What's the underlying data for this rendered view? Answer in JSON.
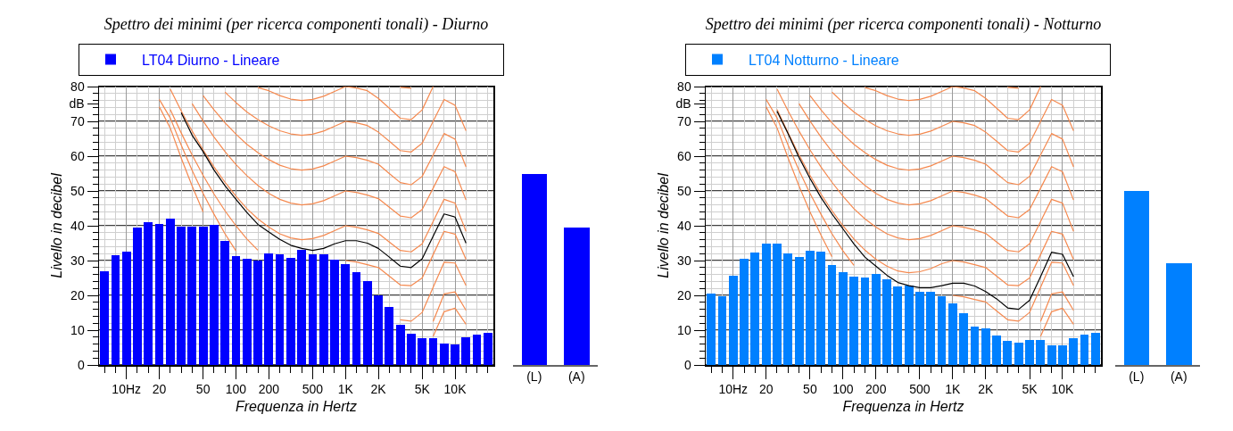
{
  "chart_data": [
    {
      "type": "bar",
      "title": "Spettro dei minimi (per ricerca componenti tonali) - Diurno",
      "xlabel": "Frequenza in Hertz",
      "ylabel": "Livello in decibel",
      "legend": "top",
      "grid": true,
      "line_style": "solid",
      "categories": [
        null,
        null,
        "10Hz",
        null,
        null,
        "20",
        null,
        null,
        null,
        "50",
        null,
        null,
        "100",
        null,
        null,
        "200",
        null,
        null,
        null,
        "500",
        null,
        null,
        "1K",
        null,
        null,
        "2K",
        null,
        null,
        null,
        "5K",
        null,
        null,
        "10K",
        null,
        null,
        null
      ],
      "ylim": [
        0,
        80
      ],
      "yticks": [
        0,
        10,
        20,
        30,
        40,
        50,
        60,
        70,
        {
          "value": 75,
          "label": "dB"
        },
        80
      ],
      "series": [
        {
          "name": "LT04 Diurno - Lineare",
          "color": "#0000ff",
          "values": [
            27,
            31.5,
            32.5,
            39.5,
            41,
            40.5,
            42,
            39.8,
            39.7,
            39.7,
            40.2,
            35.7,
            31.3,
            30.4,
            29.9,
            32.1,
            31.7,
            30.7,
            33.2,
            31.8,
            31.8,
            30.3,
            28.9,
            26.7,
            24.1,
            20.1,
            16.7,
            11.6,
            8.9,
            7.8,
            7.6,
            6.1,
            6.0,
            7.9,
            8.8,
            9.2
          ]
        },
        {
          "type": "line",
          "color": "#f5894f",
          "values": [
            null,
            null,
            null,
            null,
            null,
            null,
            null,
            null,
            null,
            null,
            null,
            null,
            null,
            null,
            null,
            null,
            null,
            null,
            null,
            null,
            null,
            null,
            null,
            null,
            null,
            null,
            null,
            79.8,
            79.5,
            null,
            null,
            null,
            null,
            null,
            null,
            null
          ]
        },
        {
          "type": "line",
          "color": "#f5894f",
          "values": [
            null,
            null,
            null,
            null,
            null,
            null,
            null,
            null,
            null,
            null,
            null,
            null,
            null,
            null,
            79.7,
            78.8,
            77.4,
            76.4,
            76,
            76.3,
            77.2,
            78.6,
            80,
            79.6,
            78.8,
            76.6,
            73.8,
            70.9,
            70.5,
            73.3,
            80,
            null,
            null,
            null,
            null,
            null
          ]
        },
        {
          "type": "line",
          "color": "#f5894f",
          "values": [
            null,
            null,
            null,
            null,
            null,
            null,
            null,
            null,
            null,
            null,
            null,
            78.4,
            75.4,
            72.7,
            70.5,
            68.7,
            67.3,
            66.4,
            66,
            66.3,
            67.2,
            68.6,
            70,
            69.6,
            68.8,
            66.9,
            64.3,
            61.6,
            61.2,
            63.7,
            70,
            76.3,
            74.6,
            67.3,
            null,
            null
          ]
        },
        {
          "type": "line",
          "color": "#f5894f",
          "values": [
            null,
            null,
            null,
            null,
            null,
            null,
            null,
            null,
            null,
            77.4,
            73.3,
            69.6,
            66.3,
            63.4,
            61,
            59,
            57.4,
            56.4,
            56,
            56.3,
            57.2,
            58.6,
            60,
            59.6,
            58.8,
            57.7,
            55,
            52.4,
            51.8,
            54.2,
            60.3,
            66.5,
            64.9,
            56.9,
            null,
            null
          ]
        },
        {
          "type": "line",
          "color": "#f5894f",
          "values": [
            null,
            null,
            null,
            null,
            null,
            null,
            null,
            null,
            75.1,
            70.1,
            65.5,
            61.3,
            57.6,
            54.4,
            51.6,
            49.3,
            47.6,
            46.5,
            46,
            46.3,
            47.2,
            48.6,
            50,
            49.6,
            48.8,
            47.8,
            45.3,
            42.8,
            42.3,
            44.7,
            50.8,
            57,
            55.5,
            47.4,
            null,
            null
          ]
        },
        {
          "type": "line",
          "color": "#f5894f",
          "values": [
            null,
            null,
            null,
            null,
            null,
            null,
            79.3,
            73,
            67.2,
            61.8,
            56.9,
            52.5,
            48.5,
            44.9,
            42,
            39.6,
            37.7,
            36.5,
            36,
            36.3,
            37.2,
            38.6,
            40,
            39.6,
            38.8,
            37.8,
            35.3,
            32.9,
            32.5,
            34.8,
            41.2,
            47.6,
            46.5,
            38.4,
            null,
            null
          ]
        },
        {
          "type": "line",
          "color": "#f5894f",
          "values": [
            null,
            null,
            null,
            null,
            null,
            null,
            73.4,
            66.7,
            60.3,
            54.5,
            49.1,
            44.3,
            40,
            36.2,
            33,
            null,
            null,
            null,
            null,
            null,
            null,
            null,
            30,
            29.6,
            28.8,
            28,
            25.5,
            23,
            22.8,
            25,
            31.7,
            38.4,
            37.6,
            30.3,
            null,
            null
          ]
        },
        {
          "type": "line",
          "color": "#f5894f",
          "values": [
            null,
            null,
            null,
            null,
            null,
            76.3,
            71,
            63.2,
            55.9,
            49.3,
            43.3,
            37.7,
            32.8,
            null,
            null,
            null,
            null,
            null,
            null,
            null,
            null,
            null,
            null,
            null,
            null,
            null,
            null,
            13,
            12.6,
            15.1,
            22.3,
            29.5,
            29.3,
            22.8,
            null,
            null
          ]
        },
        {
          "type": "line",
          "color": "#f5894f",
          "values": [
            null,
            null,
            null,
            null,
            null,
            74.2,
            68.1,
            59.5,
            51.4,
            44,
            null,
            null,
            null,
            null,
            null,
            null,
            null,
            null,
            null,
            null,
            null,
            null,
            null,
            null,
            null,
            null,
            null,
            null,
            null,
            null,
            12.5,
            20.4,
            21,
            15.7,
            null,
            null
          ]
        },
        {
          "type": "line",
          "color": "#f5894f",
          "values": [
            null,
            null,
            null,
            null,
            null,
            null,
            null,
            null,
            null,
            null,
            null,
            null,
            null,
            null,
            null,
            null,
            null,
            null,
            null,
            null,
            null,
            null,
            null,
            null,
            null,
            null,
            null,
            null,
            null,
            null,
            8.2,
            15.3,
            16.3,
            11.7,
            null,
            null
          ]
        },
        {
          "type": "line",
          "color": "#000000",
          "values": [
            null,
            null,
            null,
            null,
            null,
            null,
            null,
            72.5,
            66,
            61.3,
            56,
            51.5,
            47.6,
            43.8,
            40.4,
            38.2,
            36.1,
            34.4,
            33.5,
            32.9,
            33.5,
            34.8,
            35.7,
            35.7,
            35,
            33.5,
            31,
            28.4,
            28,
            30.5,
            37,
            43.4,
            42.5,
            35,
            null,
            null
          ]
        }
      ]
    },
    {
      "type": "bar",
      "categories": [
        "(L)",
        "(A)"
      ],
      "ylim": [
        0,
        80
      ],
      "tick_labels": "x",
      "color": "#0000ff",
      "values": [
        54.8,
        39.4
      ]
    },
    {
      "type": "bar",
      "title": "Spettro dei minimi (per ricerca componenti tonali) - Notturno",
      "xlabel": "Frequenza in Hertz",
      "ylabel": "Livello in decibel",
      "legend": "top",
      "grid": true,
      "line_style": "solid",
      "categories": [
        null,
        null,
        "10Hz",
        null,
        null,
        "20",
        null,
        null,
        null,
        "50",
        null,
        null,
        "100",
        null,
        null,
        "200",
        null,
        null,
        null,
        "500",
        null,
        null,
        "1K",
        null,
        null,
        "2K",
        null,
        null,
        null,
        "5K",
        null,
        null,
        "10K",
        null,
        null,
        null
      ],
      "ylim": [
        0,
        80
      ],
      "yticks": [
        0,
        10,
        20,
        30,
        40,
        50,
        60,
        70,
        {
          "value": 75,
          "label": "dB"
        },
        80
      ],
      "series": [
        {
          "name": "LT04 Notturno - Lineare",
          "color": "#0080ff",
          "values": [
            20.6,
            19.8,
            25.6,
            30.4,
            32.2,
            34.8,
            34.8,
            32.1,
            31.1,
            32.9,
            32.5,
            28.8,
            26.7,
            25.3,
            25.1,
            26.1,
            24.5,
            22.5,
            22.8,
            21.1,
            21.1,
            19.7,
            17.6,
            14.9,
            10.9,
            10.5,
            8.5,
            6.9,
            6.5,
            7.1,
            7.1,
            5.6,
            5.7,
            7.7,
            8.8,
            9.2
          ]
        },
        {
          "type": "line",
          "color": "#f5894f",
          "values": [
            null,
            null,
            null,
            null,
            null,
            null,
            null,
            null,
            null,
            null,
            null,
            null,
            null,
            null,
            null,
            null,
            null,
            null,
            null,
            null,
            null,
            null,
            null,
            null,
            null,
            null,
            null,
            79.8,
            79.5,
            null,
            null,
            null,
            null,
            null,
            null,
            null
          ]
        },
        {
          "type": "line",
          "color": "#f5894f",
          "values": [
            null,
            null,
            null,
            null,
            null,
            null,
            null,
            null,
            null,
            null,
            null,
            null,
            null,
            null,
            79.7,
            78.8,
            77.4,
            76.4,
            76,
            76.3,
            77.2,
            78.6,
            80,
            79.6,
            78.8,
            76.6,
            73.8,
            70.9,
            70.5,
            73.3,
            80,
            null,
            null,
            null,
            null,
            null
          ]
        },
        {
          "type": "line",
          "color": "#f5894f",
          "values": [
            null,
            null,
            null,
            null,
            null,
            null,
            null,
            null,
            null,
            null,
            null,
            78.4,
            75.4,
            72.7,
            70.5,
            68.7,
            67.3,
            66.4,
            66,
            66.3,
            67.2,
            68.6,
            70,
            69.6,
            68.8,
            66.9,
            64.3,
            61.6,
            61.2,
            63.7,
            70,
            76.3,
            74.6,
            67.3,
            null,
            null
          ]
        },
        {
          "type": "line",
          "color": "#f5894f",
          "values": [
            null,
            null,
            null,
            null,
            null,
            null,
            null,
            null,
            null,
            77.4,
            73.3,
            69.6,
            66.3,
            63.4,
            61,
            59,
            57.4,
            56.4,
            56,
            56.3,
            57.2,
            58.6,
            60,
            59.6,
            58.8,
            57.7,
            55,
            52.4,
            51.8,
            54.2,
            60.3,
            66.5,
            64.9,
            56.9,
            null,
            null
          ]
        },
        {
          "type": "line",
          "color": "#f5894f",
          "values": [
            null,
            null,
            null,
            null,
            null,
            null,
            null,
            null,
            75.1,
            70.1,
            65.5,
            61.3,
            57.6,
            54.4,
            51.6,
            49.3,
            47.6,
            46.5,
            46,
            46.3,
            47.2,
            48.6,
            50,
            49.6,
            48.8,
            47.8,
            45.3,
            42.8,
            42.3,
            44.7,
            50.8,
            57,
            55.5,
            47.4,
            null,
            null
          ]
        },
        {
          "type": "line",
          "color": "#f5894f",
          "values": [
            null,
            null,
            null,
            null,
            null,
            null,
            79.3,
            73,
            67.2,
            61.8,
            56.9,
            52.5,
            48.5,
            44.9,
            42,
            39.6,
            37.7,
            36.5,
            36,
            36.3,
            37.2,
            38.6,
            40,
            39.6,
            38.8,
            37.8,
            35.3,
            32.9,
            32.5,
            34.8,
            41.2,
            47.6,
            46.5,
            38.4,
            null,
            null
          ]
        },
        {
          "type": "line",
          "color": "#f5894f",
          "values": [
            null,
            null,
            null,
            null,
            null,
            null,
            73.4,
            66.7,
            60.3,
            54.5,
            49.1,
            44.3,
            40,
            36.2,
            33,
            30.4,
            28.4,
            27,
            26.5,
            26.8,
            27.7,
            29.1,
            30,
            29.6,
            28.8,
            28,
            25.5,
            23,
            22.8,
            25,
            31.7,
            38.4,
            37.6,
            30.3,
            null,
            null
          ]
        },
        {
          "type": "line",
          "color": "#f5894f",
          "values": [
            null,
            null,
            null,
            null,
            null,
            76.3,
            71,
            63.2,
            55.9,
            49.3,
            43.3,
            37.7,
            32.8,
            28.6,
            null,
            null,
            null,
            null,
            null,
            null,
            null,
            null,
            20,
            19.6,
            18.8,
            18.1,
            15.5,
            13,
            12.6,
            15.1,
            22.3,
            29.5,
            29.3,
            22.8,
            null,
            null
          ]
        },
        {
          "type": "line",
          "color": "#f5894f",
          "values": [
            null,
            null,
            null,
            null,
            null,
            74.2,
            68.1,
            59.5,
            51.4,
            44,
            37.3,
            31.1,
            null,
            null,
            null,
            null,
            null,
            null,
            null,
            null,
            null,
            null,
            null,
            null,
            null,
            null,
            null,
            null,
            null,
            null,
            12.5,
            20.4,
            21,
            15.7,
            null,
            null
          ]
        },
        {
          "type": "line",
          "color": "#f5894f",
          "values": [
            null,
            null,
            null,
            null,
            null,
            null,
            null,
            null,
            null,
            null,
            null,
            null,
            null,
            null,
            null,
            null,
            null,
            null,
            null,
            null,
            null,
            null,
            null,
            null,
            null,
            null,
            null,
            null,
            null,
            null,
            8.2,
            15.3,
            16.3,
            11.7,
            null,
            null
          ]
        },
        {
          "type": "line",
          "color": "#000000",
          "values": [
            null,
            null,
            null,
            null,
            null,
            null,
            72.9,
            66.5,
            59.6,
            53.6,
            48.1,
            43.4,
            39.1,
            34.8,
            31,
            28.4,
            25.8,
            23.7,
            22.8,
            22.2,
            22.2,
            22.8,
            23.5,
            23.5,
            22.7,
            21.1,
            19,
            16.4,
            16,
            18.6,
            25.4,
            32.4,
            31.8,
            25.4,
            null,
            null
          ]
        }
      ]
    },
    {
      "type": "bar",
      "categories": [
        "(L)",
        "(A)"
      ],
      "ylim": [
        0,
        80
      ],
      "tick_labels": "x",
      "color": "#0080ff",
      "values": [
        50,
        29.2
      ]
    }
  ]
}
